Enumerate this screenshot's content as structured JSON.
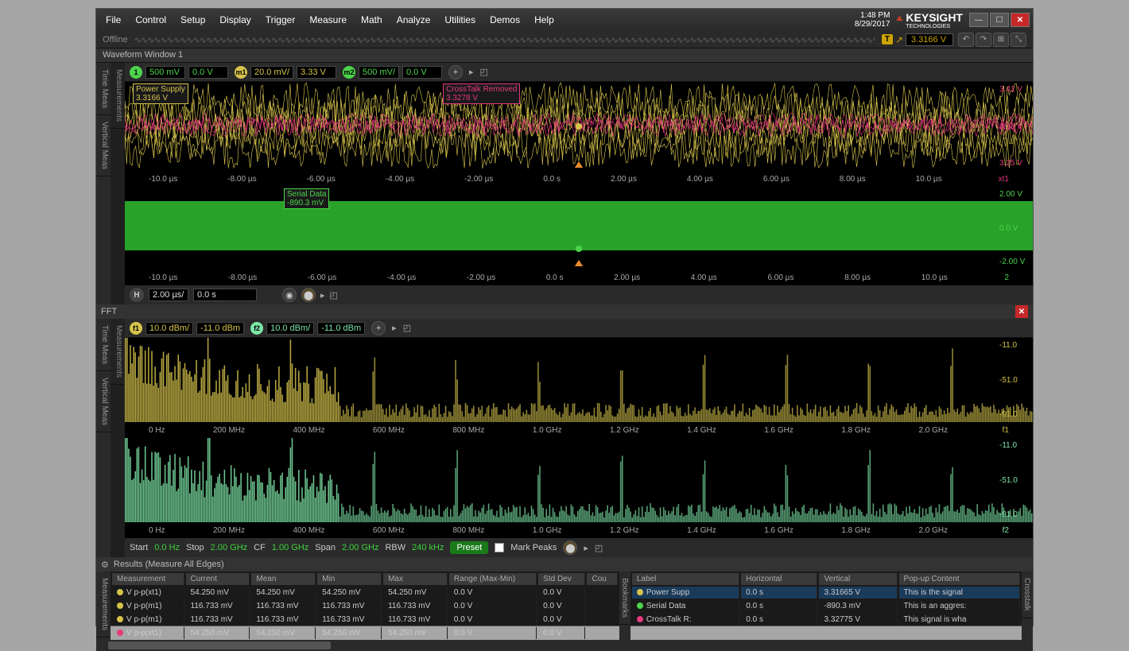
{
  "titlebar": {
    "menus": [
      "File",
      "Control",
      "Setup",
      "Display",
      "Trigger",
      "Measure",
      "Math",
      "Analyze",
      "Utilities",
      "Demos",
      "Help"
    ],
    "time": "1:48 PM",
    "date": "8/29/2017",
    "brand": "KEYSIGHT",
    "brand_sub": "TECHNOLOGIES"
  },
  "status": {
    "offline": "Offline",
    "trigger_badge": "T",
    "trigger_value": "3.3166 V"
  },
  "waveform_window": {
    "title": "Waveform Window 1",
    "side_tabs": [
      "Time Meas",
      "Vertical Meas"
    ],
    "side_tab_left2": "Measurements",
    "channels": [
      {
        "id": "1",
        "color": "#4bd44b",
        "scale": "500 mV",
        "offset": "0.0 V"
      },
      {
        "id": "m1",
        "color": "#d6c34b",
        "scale": "20.0 mV/",
        "offset": "3.33 V"
      },
      {
        "id": "m2",
        "color": "#4bd44b",
        "scale": "500 mV/",
        "offset": "0.0 V"
      }
    ],
    "markers": {
      "power_supply": {
        "label": "Power Supply",
        "value": "3.3166 V",
        "color": "#d6c34b"
      },
      "crosstalk": {
        "label": "CrossTalk Removed",
        "value": "3.3278 V",
        "color": "#e6397e"
      },
      "serial": {
        "label": "Serial Data",
        "value": "-890.3 mV",
        "color": "#4bd44b"
      }
    },
    "chart1_ylabels": [
      "3.41 V",
      "3.33 V",
      "3.25 V"
    ],
    "chart1_ycolor": "#e6397e",
    "chart2_ylabels": [
      "2.00 V",
      "0.0 V",
      "-2.00 V"
    ],
    "chart2_ycolor": "#4bd44b",
    "xaxis": [
      "-10.0 µs",
      "-8.00 µs",
      "-6.00 µs",
      "-4.00 µs",
      "-2.00 µs",
      "0.0 s",
      "2.00 µs",
      "4.00 µs",
      "6.00 µs",
      "8.00 µs",
      "10.0 µs"
    ],
    "xaxis_suffix1": "xt1",
    "xaxis_suffix2": "2",
    "time_scale": "2.00 µs/",
    "time_offset": "0.0 s"
  },
  "fft": {
    "title": "FFT",
    "channels": [
      {
        "id": "f1",
        "color": "#d6c34b",
        "scale": "10.0 dBm/",
        "offset": "-11.0 dBm"
      },
      {
        "id": "f2",
        "color": "#7ee6a8",
        "scale": "10.0 dBm/",
        "offset": "-11.0 dBm"
      }
    ],
    "ylabels": [
      "-11.0",
      "-51.0",
      "-91.0"
    ],
    "yunit": "dBm",
    "xaxis": [
      "0 Hz",
      "200 MHz",
      "400 MHz",
      "600 MHz",
      "800 MHz",
      "1.0 GHz",
      "1.2 GHz",
      "1.4 GHz",
      "1.6 GHz",
      "1.8 GHz",
      "2.0 GHz"
    ],
    "xaxis_suffix1": "f1",
    "xaxis_suffix2": "f2",
    "controls": {
      "start_label": "Start",
      "start": "0.0 Hz",
      "stop_label": "Stop",
      "stop": "2.00 GHz",
      "cf_label": "CF",
      "cf": "1.00 GHz",
      "span_label": "Span",
      "span": "2.00 GHz",
      "rbw_label": "RBW",
      "rbw": "240 kHz",
      "preset": "Preset",
      "mark_peaks": "Mark Peaks"
    }
  },
  "results": {
    "title": "Results (Measure All Edges)",
    "left_headers": [
      "Measurement",
      "Current",
      "Mean",
      "Min",
      "Max",
      "Range (Max-Min)",
      "Std Dev",
      "Cou"
    ],
    "left_rows": [
      {
        "color": "#d6c34b",
        "name": "V p-p(xt1)",
        "cur": "54.250 mV",
        "mean": "54.250 mV",
        "min": "54.250 mV",
        "max": "54.250 mV",
        "range": "0.0 V",
        "sd": "0.0 V"
      },
      {
        "color": "#d6c34b",
        "name": "V p-p(m1)",
        "cur": "116.733 mV",
        "mean": "116.733 mV",
        "min": "116.733 mV",
        "max": "116.733 mV",
        "range": "0.0 V",
        "sd": "0.0 V"
      },
      {
        "color": "#d6c34b",
        "name": "V p-p(m1)",
        "cur": "116.733 mV",
        "mean": "116.733 mV",
        "min": "116.733 mV",
        "max": "116.733 mV",
        "range": "0.0 V",
        "sd": "0.0 V"
      },
      {
        "color": "#e6397e",
        "name": "V p-p(xt1)",
        "cur": "54.250 mV",
        "mean": "54.250 mV",
        "min": "54.250 mV",
        "max": "54.250 mV",
        "range": "0.0 V",
        "sd": "0.0 V"
      }
    ],
    "right_headers": [
      "Label",
      "Horizontal",
      "Vertical",
      "Pop-up Content"
    ],
    "right_rows": [
      {
        "color": "#d6c34b",
        "label": "Power Supp",
        "h": "0.0 s",
        "v": "3.31665 V",
        "pop": "This is the signal"
      },
      {
        "color": "#4bd44b",
        "label": "Serial Data",
        "h": "0.0 s",
        "v": "-890.3 mV",
        "pop": "This is an aggres:"
      },
      {
        "color": "#e6397e",
        "label": "CrossTalk R:",
        "h": "0.0 s",
        "v": "3.32775 V",
        "pop": "This signal is wha"
      }
    ],
    "side_tab_left": "Measurements",
    "side_tab_mid": "Bookmarks",
    "side_tab_right": "Crosstalk"
  },
  "colors": {
    "yellow": "#d6c34b",
    "green": "#4bd44b",
    "mint": "#7ee6a8",
    "magenta": "#e6397e",
    "bg": "#000"
  }
}
